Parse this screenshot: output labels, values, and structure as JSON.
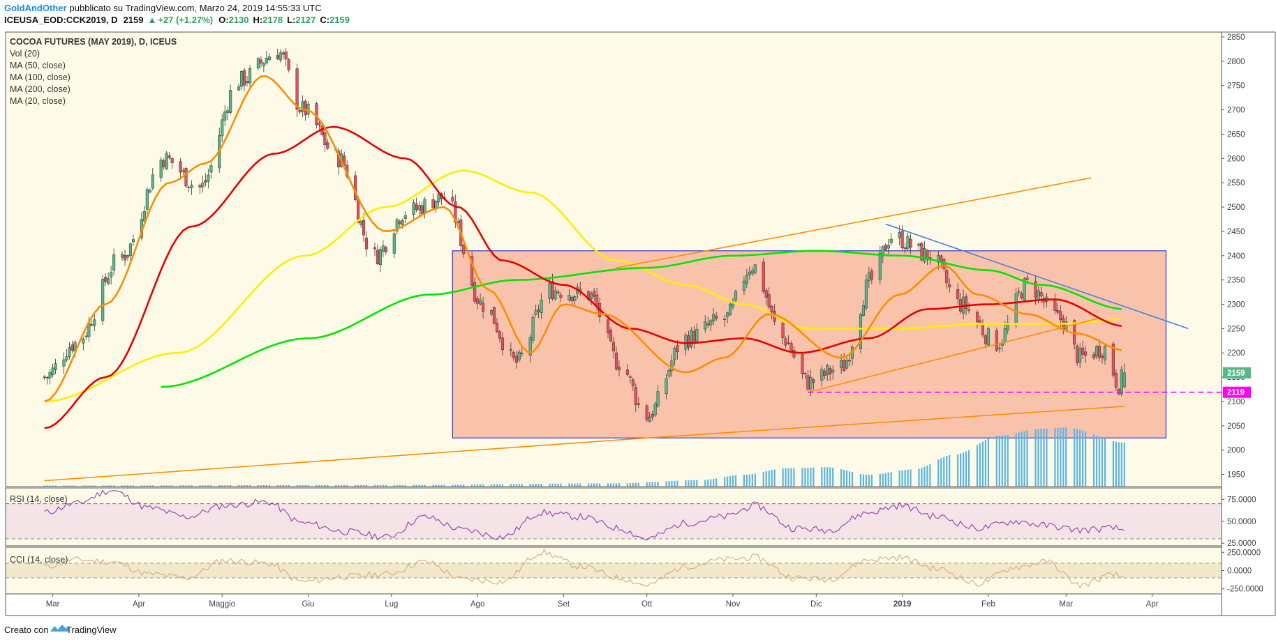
{
  "header": {
    "author": "GoldAndOther",
    "published": "pubblicato su TradingView.com, Marzo 24, 2019 14:55:33 UTC",
    "symbol": "ICEUSA_EOD:CCK2019, D",
    "last": "2159",
    "change": "+27 (+1.27%)",
    "o_label": "O:",
    "o_val": "2130",
    "h_label": "H:",
    "h_val": "2178",
    "l_label": "L:",
    "l_val": "2127",
    "c_label": "C:",
    "c_val": "2159"
  },
  "footer": {
    "created_with": "Creato con",
    "brand": "TradingView"
  },
  "colors": {
    "background": "#fdfbe7",
    "bull": "#53b987",
    "bear": "#eb4d5c",
    "ma20": "#ff8c00",
    "ma50": "#e60000",
    "ma100": "#ffee00",
    "ma200": "#00e600",
    "volume": "#5ab4e6",
    "range_box": "#f8b8a0",
    "range_border": "#3333cc",
    "trend_line": "#ff8c00",
    "down_trend": "#4a7fe0",
    "support": "#ff00ff",
    "rsi": "#8f3fa7",
    "cci": "#c8b088"
  },
  "chart_data": [
    {
      "type": "candlestick",
      "title": "COCOA FUTURES (MAY 2019), D, ICEUS",
      "legend": [
        "Vol (20)",
        "MA (50, close)",
        "MA (100, close)",
        "MA (200, close)",
        "MA (20, close)"
      ],
      "x_ticks": [
        "Mar",
        "Apr",
        "Maggio",
        "Giu",
        "Lug",
        "Ago",
        "Set",
        "Ott",
        "Nov",
        "Dic",
        "2019",
        "Feb",
        "Mar",
        "Apr"
      ],
      "y_ticks": [
        1950,
        2000,
        2050,
        2100,
        2150,
        2200,
        2250,
        2300,
        2350,
        2400,
        2450,
        2500,
        2550,
        2600,
        2650,
        2700,
        2750,
        2800,
        2850
      ],
      "ylim": [
        1925,
        2860
      ],
      "price_labels": [
        {
          "label": "2159",
          "value": 2159
        },
        {
          "label": "2119",
          "value": 2119
        }
      ],
      "close_anchors": [
        [
          "2018-02-26",
          2150
        ],
        [
          "2018-03-09",
          2220
        ],
        [
          "2018-03-26",
          2400
        ],
        [
          "2018-04-10",
          2600
        ],
        [
          "2018-04-23",
          2540
        ],
        [
          "2018-05-07",
          2760
        ],
        [
          "2018-05-21",
          2820
        ],
        [
          "2018-05-30",
          2700
        ],
        [
          "2018-06-12",
          2600
        ],
        [
          "2018-06-25",
          2400
        ],
        [
          "2018-07-06",
          2490
        ],
        [
          "2018-07-20",
          2520
        ],
        [
          "2018-08-03",
          2300
        ],
        [
          "2018-08-15",
          2180
        ],
        [
          "2018-08-27",
          2330
        ],
        [
          "2018-09-10",
          2320
        ],
        [
          "2018-09-21",
          2180
        ],
        [
          "2018-10-01",
          2070
        ],
        [
          "2018-10-15",
          2230
        ],
        [
          "2018-10-29",
          2270
        ],
        [
          "2018-11-08",
          2380
        ],
        [
          "2018-11-19",
          2230
        ],
        [
          "2018-11-28",
          2140
        ],
        [
          "2018-12-10",
          2170
        ],
        [
          "2018-12-21",
          2350
        ],
        [
          "2018-12-28",
          2440
        ],
        [
          "2019-01-11",
          2400
        ],
        [
          "2019-01-22",
          2300
        ],
        [
          "2019-02-04",
          2220
        ],
        [
          "2019-02-15",
          2340
        ],
        [
          "2019-02-27",
          2270
        ],
        [
          "2019-03-06",
          2190
        ],
        [
          "2019-03-15",
          2210
        ],
        [
          "2019-03-20",
          2135
        ],
        [
          "2019-03-22",
          2159
        ]
      ],
      "ma20": [
        [
          "2018-02-26",
          2100
        ],
        [
          "2018-03-20",
          2300
        ],
        [
          "2018-04-12",
          2550
        ],
        [
          "2018-04-25",
          2590
        ],
        [
          "2018-05-16",
          2770
        ],
        [
          "2018-05-31",
          2700
        ],
        [
          "2018-06-29",
          2450
        ],
        [
          "2018-07-20",
          2500
        ],
        [
          "2018-08-05",
          2330
        ],
        [
          "2018-08-20",
          2200
        ],
        [
          "2018-09-01",
          2300
        ],
        [
          "2018-09-15",
          2280
        ],
        [
          "2018-10-15",
          2160
        ],
        [
          "2018-10-29",
          2190
        ],
        [
          "2018-11-14",
          2280
        ],
        [
          "2018-12-10",
          2190
        ],
        [
          "2018-12-31",
          2320
        ],
        [
          "2019-01-16",
          2380
        ],
        [
          "2019-01-28",
          2320
        ],
        [
          "2019-02-15",
          2280
        ],
        [
          "2019-03-05",
          2240
        ],
        [
          "2019-03-22",
          2205
        ]
      ],
      "ma50": [
        [
          "2018-02-26",
          2045
        ],
        [
          "2018-03-20",
          2150
        ],
        [
          "2018-04-20",
          2460
        ],
        [
          "2018-05-20",
          2610
        ],
        [
          "2018-06-10",
          2665
        ],
        [
          "2018-07-06",
          2600
        ],
        [
          "2018-07-25",
          2500
        ],
        [
          "2018-08-10",
          2390
        ],
        [
          "2018-09-01",
          2340
        ],
        [
          "2018-09-25",
          2250
        ],
        [
          "2018-10-15",
          2220
        ],
        [
          "2018-11-05",
          2230
        ],
        [
          "2018-11-25",
          2200
        ],
        [
          "2018-12-20",
          2230
        ],
        [
          "2019-01-10",
          2290
        ],
        [
          "2019-02-01",
          2300
        ],
        [
          "2019-02-25",
          2310
        ],
        [
          "2019-03-22",
          2255
        ]
      ],
      "ma100": [
        [
          "2018-02-26",
          2100
        ],
        [
          "2018-04-15",
          2200
        ],
        [
          "2018-05-31",
          2400
        ],
        [
          "2018-06-29",
          2500
        ],
        [
          "2018-07-27",
          2575
        ],
        [
          "2018-08-20",
          2530
        ],
        [
          "2018-09-20",
          2390
        ],
        [
          "2018-10-15",
          2340
        ],
        [
          "2018-11-05",
          2300
        ],
        [
          "2018-11-28",
          2250
        ],
        [
          "2018-12-31",
          2250
        ],
        [
          "2019-01-31",
          2260
        ],
        [
          "2019-02-28",
          2260
        ],
        [
          "2019-03-22",
          2270
        ]
      ],
      "ma200": [
        [
          "2018-04-09",
          2130
        ],
        [
          "2018-06-01",
          2230
        ],
        [
          "2018-07-15",
          2320
        ],
        [
          "2018-08-15",
          2350
        ],
        [
          "2018-10-01",
          2375
        ],
        [
          "2018-11-01",
          2400
        ],
        [
          "2018-12-01",
          2410
        ],
        [
          "2019-01-01",
          2400
        ],
        [
          "2019-02-01",
          2370
        ],
        [
          "2019-02-20",
          2340
        ],
        [
          "2019-03-22",
          2290
        ]
      ],
      "range_box": {
        "from": "2018-07-23",
        "to": "2019-04-06",
        "low": 2025,
        "high": 2410
      },
      "trend_lines": [
        {
          "from": [
            "2018-02-26",
            1937
          ],
          "to": [
            "2018-10-01",
            2025
          ]
        },
        {
          "from": [
            "2018-10-01",
            2025
          ],
          "to": [
            "2019-03-22",
            2090
          ]
        },
        {
          "from": [
            "2018-11-28",
            2119
          ],
          "to": [
            "2019-03-12",
            2270
          ]
        },
        {
          "from": [
            "2018-09-20",
            2375
          ],
          "to": [
            "2019-03-10",
            2560
          ]
        },
        {
          "from": [
            "2018-12-26",
            2465
          ],
          "to": [
            "2019-04-14",
            2250
          ]
        }
      ],
      "support_line": {
        "value": 2119,
        "from": "2018-11-28",
        "to": "2019-04-20"
      },
      "volume_profile": [
        [
          "2018-02-26",
          2
        ],
        [
          "2018-07-01",
          3
        ],
        [
          "2018-09-20",
          6
        ],
        [
          "2018-10-20",
          12
        ],
        [
          "2018-11-05",
          22
        ],
        [
          "2018-11-20",
          34
        ],
        [
          "2018-12-05",
          36
        ],
        [
          "2018-12-20",
          22
        ],
        [
          "2019-01-05",
          32
        ],
        [
          "2019-01-20",
          60
        ],
        [
          "2019-02-05",
          95
        ],
        [
          "2019-02-20",
          108
        ],
        [
          "2019-03-01",
          110
        ],
        [
          "2019-03-22",
          82
        ]
      ]
    },
    {
      "type": "line",
      "title": "RSI (14, close)",
      "y_ticks": [
        25,
        50,
        75
      ],
      "y_tick_labels": [
        "25.0000",
        "50.0000",
        "75.0000"
      ],
      "ylim": [
        22,
        88
      ],
      "overbought": 70,
      "oversold": 30,
      "points": [
        [
          "2018-02-26",
          60
        ],
        [
          "2018-03-09",
          70
        ],
        [
          "2018-03-22",
          85
        ],
        [
          "2018-04-05",
          65
        ],
        [
          "2018-04-18",
          55
        ],
        [
          "2018-05-02",
          68
        ],
        [
          "2018-05-17",
          72
        ],
        [
          "2018-05-30",
          48
        ],
        [
          "2018-06-15",
          38
        ],
        [
          "2018-06-29",
          32
        ],
        [
          "2018-07-13",
          55
        ],
        [
          "2018-07-27",
          40
        ],
        [
          "2018-08-10",
          32
        ],
        [
          "2018-08-24",
          60
        ],
        [
          "2018-09-07",
          55
        ],
        [
          "2018-09-21",
          42
        ],
        [
          "2018-10-01",
          30
        ],
        [
          "2018-10-15",
          48
        ],
        [
          "2018-10-29",
          55
        ],
        [
          "2018-11-09",
          68
        ],
        [
          "2018-11-23",
          42
        ],
        [
          "2018-12-05",
          40
        ],
        [
          "2018-12-20",
          60
        ],
        [
          "2018-12-31",
          68
        ],
        [
          "2019-01-14",
          55
        ],
        [
          "2019-01-28",
          42
        ],
        [
          "2019-02-11",
          50
        ],
        [
          "2019-02-22",
          45
        ],
        [
          "2019-03-06",
          40
        ],
        [
          "2019-03-18",
          42
        ],
        [
          "2019-03-22",
          40
        ]
      ]
    },
    {
      "type": "line",
      "title": "CCI (14, close)",
      "y_ticks": [
        -250,
        0,
        250
      ],
      "y_tick_labels": [
        "-250.0000",
        "0.0000",
        "250.0000"
      ],
      "ylim": [
        -320,
        320
      ],
      "upper": 100,
      "lower": -100,
      "points": [
        [
          "2018-02-26",
          50
        ],
        [
          "2018-03-09",
          150
        ],
        [
          "2018-03-22",
          120
        ],
        [
          "2018-04-05",
          -50
        ],
        [
          "2018-04-18",
          -100
        ],
        [
          "2018-05-02",
          140
        ],
        [
          "2018-05-17",
          100
        ],
        [
          "2018-05-30",
          -150
        ],
        [
          "2018-06-15",
          -80
        ],
        [
          "2018-06-29",
          -50
        ],
        [
          "2018-07-13",
          120
        ],
        [
          "2018-07-27",
          -120
        ],
        [
          "2018-08-10",
          -150
        ],
        [
          "2018-08-24",
          250
        ],
        [
          "2018-09-07",
          60
        ],
        [
          "2018-09-21",
          -100
        ],
        [
          "2018-10-01",
          -200
        ],
        [
          "2018-10-15",
          60
        ],
        [
          "2018-10-29",
          150
        ],
        [
          "2018-11-09",
          180
        ],
        [
          "2018-11-23",
          -100
        ],
        [
          "2018-12-05",
          -120
        ],
        [
          "2018-12-20",
          150
        ],
        [
          "2018-12-31",
          180
        ],
        [
          "2019-01-14",
          20
        ],
        [
          "2019-01-28",
          -180
        ],
        [
          "2019-02-11",
          50
        ],
        [
          "2019-02-22",
          120
        ],
        [
          "2019-03-06",
          -200
        ],
        [
          "2019-03-18",
          -60
        ],
        [
          "2019-03-22",
          -90
        ]
      ]
    }
  ]
}
